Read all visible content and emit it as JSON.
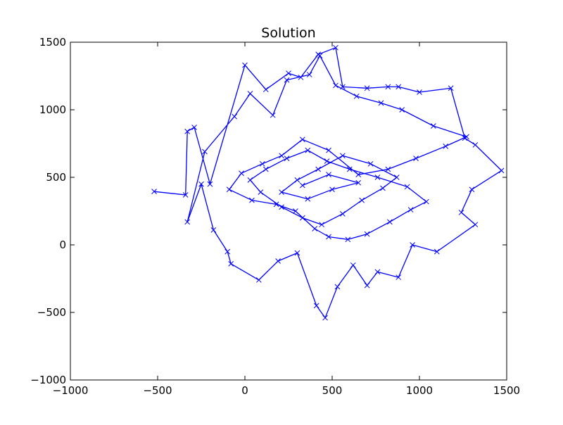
{
  "chart_data": {
    "type": "line",
    "title": "Solution",
    "xlabel": "",
    "ylabel": "",
    "xlim": [
      -1000,
      1500
    ],
    "ylim": [
      -1000,
      1500
    ],
    "xticks": [
      -1000,
      -500,
      0,
      500,
      1000,
      1500
    ],
    "yticks": [
      -1000,
      -500,
      0,
      500,
      1000,
      1500
    ],
    "xtick_labels": [
      "−1000",
      "−500",
      "0",
      "500",
      "1000",
      "1500"
    ],
    "ytick_labels": [
      "−1000",
      "−500",
      "0",
      "500",
      "1000",
      "1500"
    ],
    "grid": false,
    "legend": "none",
    "marker": "x",
    "series": [
      {
        "color": "#0000ff",
        "x": [
          -520,
          -340,
          -330,
          -290,
          -200,
          0,
          120,
          250,
          320,
          420,
          520,
          560,
          700,
          820,
          880,
          1000,
          1180,
          1260,
          1320,
          1470,
          1300,
          1240,
          1320,
          1100,
          960,
          880,
          760,
          700,
          620,
          530,
          460,
          410,
          300,
          190,
          80,
          -80,
          -100,
          -180,
          -250,
          -330,
          -230,
          -60,
          30,
          160,
          240,
          370,
          430,
          520,
          640,
          780,
          900,
          1080,
          1270,
          1150,
          980,
          820,
          650,
          480,
          330,
          210,
          100,
          -20,
          -90,
          40,
          180,
          290,
          400,
          480,
          590,
          700,
          830,
          950,
          1040,
          930,
          760,
          600,
          470,
          360,
          240,
          120,
          30,
          90,
          210,
          330,
          440,
          560,
          670,
          790,
          870,
          720,
          560,
          420,
          300,
          210,
          360,
          500,
          650,
          480,
          330
        ],
        "y": [
          395,
          370,
          840,
          870,
          450,
          1330,
          1150,
          1270,
          1240,
          1410,
          1460,
          1170,
          1160,
          1170,
          1170,
          1130,
          1160,
          790,
          740,
          550,
          410,
          240,
          150,
          -50,
          0,
          -240,
          -200,
          -300,
          -150,
          -310,
          -540,
          -450,
          -60,
          -120,
          -260,
          -140,
          -50,
          110,
          450,
          170,
          690,
          950,
          1120,
          960,
          1220,
          1260,
          1400,
          1180,
          1100,
          1050,
          1000,
          880,
          800,
          730,
          640,
          560,
          520,
          700,
          780,
          660,
          600,
          530,
          410,
          330,
          300,
          250,
          120,
          60,
          40,
          80,
          170,
          260,
          320,
          430,
          500,
          560,
          620,
          700,
          640,
          560,
          480,
          390,
          280,
          200,
          150,
          230,
          330,
          420,
          500,
          600,
          660,
          560,
          480,
          390,
          340,
          410,
          460,
          520,
          440
        ]
      }
    ]
  }
}
